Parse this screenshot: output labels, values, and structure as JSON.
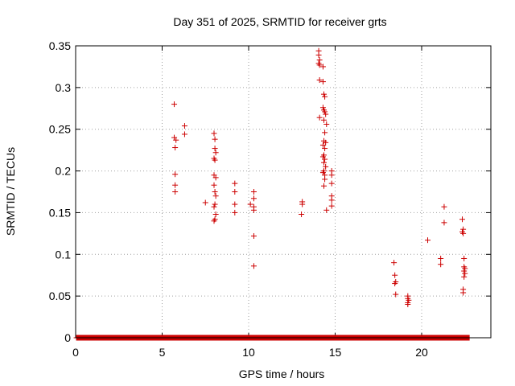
{
  "chart_data": {
    "type": "scatter",
    "title": "Day 351 of 2025, SRMTID for receiver grts",
    "xlabel": "GPS time / hours",
    "ylabel": "SRMTID / TECUs",
    "xlim": [
      0,
      24
    ],
    "ylim": [
      0,
      0.35
    ],
    "grid": true,
    "xticks": [
      0,
      5,
      10,
      15,
      20
    ],
    "xtick_labels": [
      "0",
      "5",
      "10",
      "15",
      "20"
    ],
    "yticks": [
      0,
      0.05,
      0.1,
      0.15,
      0.2,
      0.25,
      0.3,
      0.35
    ],
    "ytick_labels": [
      "0",
      "0.05",
      "0.1",
      "0.15",
      "0.2",
      "0.25",
      "0.3",
      "0.35"
    ],
    "marker": "+",
    "color": "#cc0000",
    "series": [
      {
        "name": "SRMTID",
        "points": [
          [
            5.7,
            0.28
          ],
          [
            5.7,
            0.24
          ],
          [
            5.75,
            0.228
          ],
          [
            5.8,
            0.237
          ],
          [
            5.75,
            0.196
          ],
          [
            5.75,
            0.183
          ],
          [
            5.75,
            0.175
          ],
          [
            6.3,
            0.254
          ],
          [
            6.3,
            0.244
          ],
          [
            7.5,
            0.162
          ],
          [
            8.0,
            0.245
          ],
          [
            8.05,
            0.238
          ],
          [
            8.05,
            0.227
          ],
          [
            8.1,
            0.222
          ],
          [
            8.0,
            0.215
          ],
          [
            8.05,
            0.213
          ],
          [
            8.0,
            0.195
          ],
          [
            8.1,
            0.192
          ],
          [
            8.0,
            0.183
          ],
          [
            8.05,
            0.175
          ],
          [
            8.1,
            0.17
          ],
          [
            8.05,
            0.16
          ],
          [
            8.0,
            0.157
          ],
          [
            8.1,
            0.148
          ],
          [
            8.05,
            0.142
          ],
          [
            8.0,
            0.14
          ],
          [
            9.2,
            0.185
          ],
          [
            9.2,
            0.175
          ],
          [
            9.2,
            0.16
          ],
          [
            9.2,
            0.15
          ],
          [
            10.1,
            0.16
          ],
          [
            10.3,
            0.175
          ],
          [
            10.3,
            0.167
          ],
          [
            10.3,
            0.157
          ],
          [
            10.3,
            0.153
          ],
          [
            10.3,
            0.122
          ],
          [
            10.3,
            0.086
          ],
          [
            13.1,
            0.163
          ],
          [
            13.1,
            0.16
          ],
          [
            13.05,
            0.148
          ],
          [
            14.05,
            0.344
          ],
          [
            14.05,
            0.339
          ],
          [
            14.1,
            0.333
          ],
          [
            14.05,
            0.329
          ],
          [
            14.1,
            0.327
          ],
          [
            14.3,
            0.325
          ],
          [
            14.1,
            0.309
          ],
          [
            14.3,
            0.307
          ],
          [
            14.35,
            0.292
          ],
          [
            14.4,
            0.289
          ],
          [
            14.3,
            0.276
          ],
          [
            14.35,
            0.273
          ],
          [
            14.4,
            0.271
          ],
          [
            14.45,
            0.268
          ],
          [
            14.1,
            0.264
          ],
          [
            14.35,
            0.261
          ],
          [
            14.5,
            0.256
          ],
          [
            14.4,
            0.246
          ],
          [
            14.35,
            0.236
          ],
          [
            14.45,
            0.234
          ],
          [
            14.3,
            0.231
          ],
          [
            14.4,
            0.227
          ],
          [
            14.35,
            0.219
          ],
          [
            14.3,
            0.217
          ],
          [
            14.4,
            0.214
          ],
          [
            14.35,
            0.21
          ],
          [
            14.45,
            0.205
          ],
          [
            14.35,
            0.2
          ],
          [
            14.3,
            0.198
          ],
          [
            14.4,
            0.195
          ],
          [
            14.4,
            0.19
          ],
          [
            14.35,
            0.182
          ],
          [
            14.5,
            0.153
          ],
          [
            14.8,
            0.2
          ],
          [
            14.8,
            0.195
          ],
          [
            14.8,
            0.185
          ],
          [
            14.8,
            0.17
          ],
          [
            14.8,
            0.165
          ],
          [
            14.8,
            0.158
          ],
          [
            18.4,
            0.09
          ],
          [
            18.45,
            0.075
          ],
          [
            18.5,
            0.067
          ],
          [
            18.45,
            0.065
          ],
          [
            18.5,
            0.052
          ],
          [
            19.2,
            0.05
          ],
          [
            19.2,
            0.047
          ],
          [
            19.25,
            0.045
          ],
          [
            19.2,
            0.042
          ],
          [
            19.2,
            0.04
          ],
          [
            20.35,
            0.117
          ],
          [
            21.1,
            0.095
          ],
          [
            21.1,
            0.088
          ],
          [
            21.3,
            0.157
          ],
          [
            21.3,
            0.138
          ],
          [
            22.35,
            0.142
          ],
          [
            22.4,
            0.13
          ],
          [
            22.35,
            0.127
          ],
          [
            22.4,
            0.125
          ],
          [
            22.45,
            0.095
          ],
          [
            22.45,
            0.085
          ],
          [
            22.5,
            0.083
          ],
          [
            22.45,
            0.08
          ],
          [
            22.5,
            0.077
          ],
          [
            22.45,
            0.073
          ],
          [
            22.4,
            0.058
          ],
          [
            22.4,
            0.054
          ]
        ],
        "zero_line": {
          "value": 0,
          "x_start": 0.05,
          "x_end": 22.75
        }
      }
    ]
  }
}
